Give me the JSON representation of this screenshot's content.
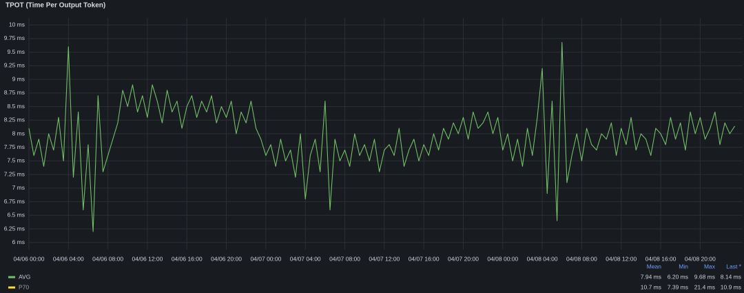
{
  "chart_data": {
    "type": "line",
    "title": "TPOT (Time Per Output Token)",
    "x": [
      0,
      0.5,
      1,
      1.5,
      2,
      2.5,
      3,
      3.5,
      4,
      4.5,
      5,
      5.5,
      6,
      6.5,
      7,
      7.5,
      8,
      8.5,
      9,
      9.5,
      10,
      10.5,
      11,
      11.5,
      12,
      12.5,
      13,
      13.5,
      14,
      14.5,
      15,
      15.5,
      16,
      16.5,
      17,
      17.5,
      18,
      18.5,
      19,
      19.5,
      20,
      20.5,
      21,
      21.5,
      22,
      22.5,
      23,
      23.5,
      24,
      24.5,
      25,
      25.5,
      26,
      26.5,
      27,
      27.5,
      28,
      28.5,
      29,
      29.5,
      30,
      30.5,
      31,
      31.5,
      32,
      32.5,
      33,
      33.5,
      34,
      34.5,
      35,
      35.5,
      36,
      36.5,
      37,
      37.5,
      38,
      38.5,
      39,
      39.5,
      40,
      40.5,
      41,
      41.5,
      42,
      42.5,
      43,
      43.5,
      44,
      44.5,
      45,
      45.5,
      46,
      46.5,
      47,
      47.5,
      48,
      48.5,
      49,
      49.5,
      50,
      50.5,
      51,
      51.5,
      52,
      52.5,
      53,
      53.5,
      54,
      54.5,
      55,
      55.5,
      56,
      56.5,
      57,
      57.5,
      58,
      58.5,
      59,
      59.5,
      60,
      60.5,
      61,
      61.5,
      62,
      62.5,
      63,
      63.5,
      64,
      64.5,
      65,
      65.5,
      66,
      66.5,
      67,
      67.5,
      68,
      68.5,
      69,
      69.5,
      70,
      70.5,
      71,
      71.5
    ],
    "series": [
      {
        "name": "AVG",
        "color": "#73bf69",
        "values": [
          8.1,
          7.6,
          7.9,
          7.4,
          8.0,
          7.7,
          8.3,
          7.5,
          9.6,
          7.2,
          8.4,
          6.6,
          7.8,
          6.2,
          8.7,
          7.3,
          7.6,
          7.9,
          8.2,
          8.8,
          8.5,
          8.9,
          8.4,
          8.7,
          8.3,
          8.9,
          8.6,
          8.2,
          8.8,
          8.4,
          8.6,
          8.1,
          8.5,
          8.7,
          8.3,
          8.6,
          8.4,
          8.7,
          8.2,
          8.5,
          8.3,
          8.6,
          8.0,
          8.4,
          8.2,
          8.6,
          8.1,
          7.9,
          7.6,
          7.8,
          7.4,
          7.9,
          7.5,
          7.7,
          7.2,
          8.0,
          6.8,
          7.6,
          7.9,
          7.3,
          8.6,
          6.6,
          7.9,
          7.5,
          7.7,
          7.4,
          8.0,
          7.6,
          7.8,
          7.5,
          7.9,
          7.3,
          7.7,
          7.8,
          7.6,
          8.1,
          7.4,
          7.7,
          7.9,
          7.5,
          7.8,
          7.6,
          8.0,
          7.7,
          8.1,
          7.9,
          8.2,
          8.0,
          8.3,
          7.9,
          8.4,
          8.1,
          8.2,
          8.4,
          8.0,
          8.3,
          7.7,
          8.0,
          7.5,
          7.9,
          7.4,
          8.1,
          7.6,
          8.3,
          9.2,
          6.9,
          8.6,
          6.4,
          9.68,
          7.1,
          7.6,
          8.0,
          7.5,
          8.1,
          7.8,
          7.7,
          8.0,
          7.9,
          8.2,
          7.6,
          8.1,
          7.8,
          8.3,
          7.7,
          8.0,
          7.9,
          7.6,
          8.1,
          8.0,
          7.8,
          8.3,
          7.9,
          8.2,
          7.7,
          8.4,
          8.0,
          8.3,
          7.9,
          8.1,
          8.4,
          7.8,
          8.2,
          8.0,
          8.14
        ]
      }
    ],
    "xlim": [
      0,
      72.3
    ],
    "xticks": [
      {
        "value": 0,
        "label": "04/06 00:00"
      },
      {
        "value": 4,
        "label": "04/06 04:00"
      },
      {
        "value": 8,
        "label": "04/06 08:00"
      },
      {
        "value": 12,
        "label": "04/06 12:00"
      },
      {
        "value": 16,
        "label": "04/06 16:00"
      },
      {
        "value": 20,
        "label": "04/06 20:00"
      },
      {
        "value": 24,
        "label": "04/07 00:00"
      },
      {
        "value": 28,
        "label": "04/07 04:00"
      },
      {
        "value": 32,
        "label": "04/07 08:00"
      },
      {
        "value": 36,
        "label": "04/07 12:00"
      },
      {
        "value": 40,
        "label": "04/07 16:00"
      },
      {
        "value": 44,
        "label": "04/07 20:00"
      },
      {
        "value": 48,
        "label": "04/08 00:00"
      },
      {
        "value": 52,
        "label": "04/08 04:00"
      },
      {
        "value": 56,
        "label": "04/08 08:00"
      },
      {
        "value": 60,
        "label": "04/08 12:00"
      },
      {
        "value": 64,
        "label": "04/08 16:00"
      },
      {
        "value": 68,
        "label": "04/08 20:00"
      }
    ],
    "ylim": [
      5.87,
      10.13
    ],
    "yticks": [
      {
        "value": 6,
        "label": "6 ms"
      },
      {
        "value": 6.25,
        "label": "6.25 ms"
      },
      {
        "value": 6.5,
        "label": "6.5 ms"
      },
      {
        "value": 6.75,
        "label": "6.75 ms"
      },
      {
        "value": 7,
        "label": "7 ms"
      },
      {
        "value": 7.25,
        "label": "7.25 ms"
      },
      {
        "value": 7.5,
        "label": "7.5 ms"
      },
      {
        "value": 7.75,
        "label": "7.75 ms"
      },
      {
        "value": 8,
        "label": "8 ms"
      },
      {
        "value": 8.25,
        "label": "8.25 ms"
      },
      {
        "value": 8.5,
        "label": "8.5 ms"
      },
      {
        "value": 8.75,
        "label": "8.75 ms"
      },
      {
        "value": 9,
        "label": "9 ms"
      },
      {
        "value": 9.25,
        "label": "9.25 ms"
      },
      {
        "value": 9.5,
        "label": "9.5 ms"
      },
      {
        "value": 9.75,
        "label": "9.75 ms"
      },
      {
        "value": 10,
        "label": "10 ms"
      }
    ],
    "grid": true,
    "legend_table": {
      "columns": [
        "Mean",
        "Min",
        "Max",
        "Last *"
      ],
      "rows": [
        {
          "name": "AVG",
          "color": "#73bf69",
          "stats": [
            "7.94 ms",
            "6.20 ms",
            "9.68 ms",
            "8.14 ms"
          ]
        },
        {
          "name": "P70",
          "color": "#fade2a",
          "stats": [
            "10.7 ms",
            "7.39 ms",
            "21.4 ms",
            "10.9 ms"
          ]
        }
      ]
    }
  }
}
